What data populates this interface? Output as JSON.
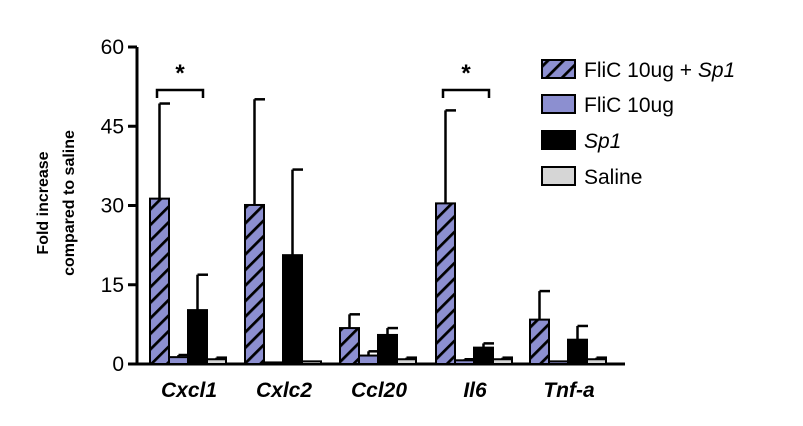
{
  "chart_data": {
    "type": "bar",
    "title": "",
    "xlabel": "",
    "ylabel_lines": [
      "Fold increase",
      "compared to saline"
    ],
    "ylim": [
      0,
      60
    ],
    "yticks": [
      "0",
      "15",
      "30",
      "45",
      "60"
    ],
    "categories": [
      "Cxcl1",
      "Cxlc2",
      "Ccl20",
      "Il6",
      "Tnf-a"
    ],
    "series": [
      {
        "name": "FliC 10ug + Sp1",
        "label_plain": "FliC 10ug + ",
        "label_italic": "Sp1",
        "fill": "#8c8fd0",
        "pattern": "hatch",
        "values": [
          31.3,
          30.1,
          6.8,
          30.4,
          8.4
        ],
        "errors": [
          18.0,
          20.0,
          2.6,
          17.6,
          5.4
        ]
      },
      {
        "name": "FliC 10ug",
        "label_plain": "FliC 10ug",
        "label_italic": "",
        "fill": "#8c8fd0",
        "pattern": "solid",
        "values": [
          1.3,
          0.3,
          1.6,
          0.7,
          0.5
        ],
        "errors": [
          0.4,
          0.0,
          0.8,
          0.2,
          0.0
        ]
      },
      {
        "name": "Sp1",
        "label_plain": "",
        "label_italic": "Sp1",
        "fill": "#000000",
        "pattern": "solid",
        "values": [
          10.2,
          20.6,
          5.5,
          3.1,
          4.6
        ],
        "errors": [
          6.7,
          16.2,
          1.3,
          0.8,
          2.6
        ]
      },
      {
        "name": "Saline",
        "label_plain": "Saline",
        "label_italic": "",
        "fill": "#d6d6d6",
        "pattern": "solid",
        "values": [
          0.9,
          0.5,
          0.9,
          0.9,
          0.9
        ],
        "errors": [
          0.3,
          0.0,
          0.3,
          0.3,
          0.3
        ]
      }
    ],
    "significance": [
      {
        "category": "Cxcl1",
        "from_series": 0,
        "to_series": 2,
        "label": "*"
      },
      {
        "category": "Il6",
        "from_series": 0,
        "to_series": 2,
        "label": "*"
      }
    ],
    "legend_position": "right"
  }
}
